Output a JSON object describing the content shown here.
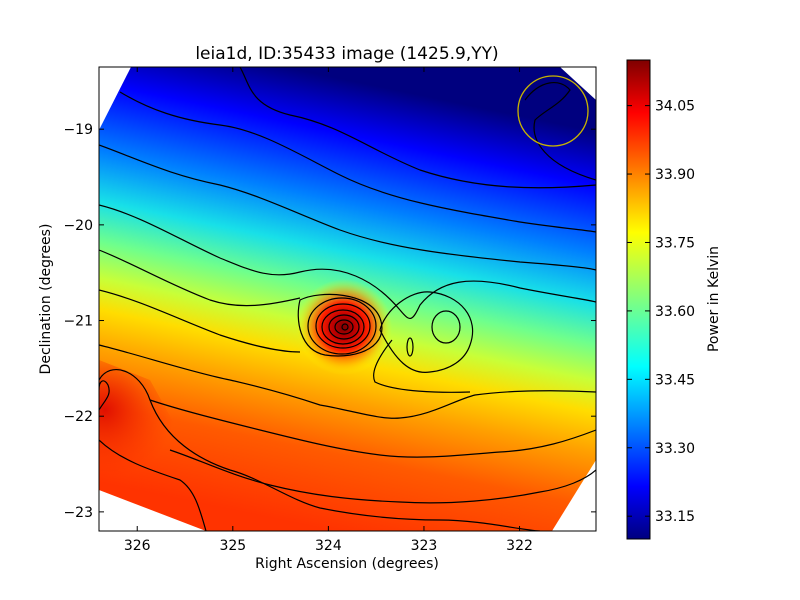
{
  "chart_data": {
    "type": "heatmap",
    "title": "leia1d, ID:35433 image (1425.9,YY)",
    "xlabel": "Right Ascension (degrees)",
    "ylabel": "Declination (degrees)",
    "xlim": [
      326.4,
      321.2
    ],
    "ylim": [
      -23.2,
      -18.35
    ],
    "x_ticks": [
      "326",
      "325",
      "324",
      "323",
      "322"
    ],
    "x_tick_values": [
      326,
      325,
      324,
      323,
      322
    ],
    "y_ticks": [
      "−19",
      "−20",
      "−21",
      "−22",
      "−23"
    ],
    "y_tick_values": [
      -19,
      -20,
      -21,
      -22,
      -23
    ],
    "colorbar": {
      "label": "Power in Kelvin",
      "min": 33.1,
      "max": 34.15,
      "ticks": [
        "33.15",
        "33.30",
        "33.45",
        "33.60",
        "33.75",
        "33.90",
        "34.05"
      ],
      "tick_values": [
        33.15,
        33.3,
        33.45,
        33.6,
        33.75,
        33.9,
        34.05
      ],
      "colormap": "jet"
    },
    "features": {
      "hot_spot": {
        "ra": 323.85,
        "dec": -21.1
      },
      "secondary_peak": {
        "ra": 322.8,
        "dec": -21.08
      },
      "beam_circle": {
        "ra": 321.65,
        "dec": -18.82,
        "color": "#c8b400"
      }
    }
  },
  "colors": {
    "contour": "#000000",
    "frame": "#000000",
    "nodata": "#ffffff"
  }
}
